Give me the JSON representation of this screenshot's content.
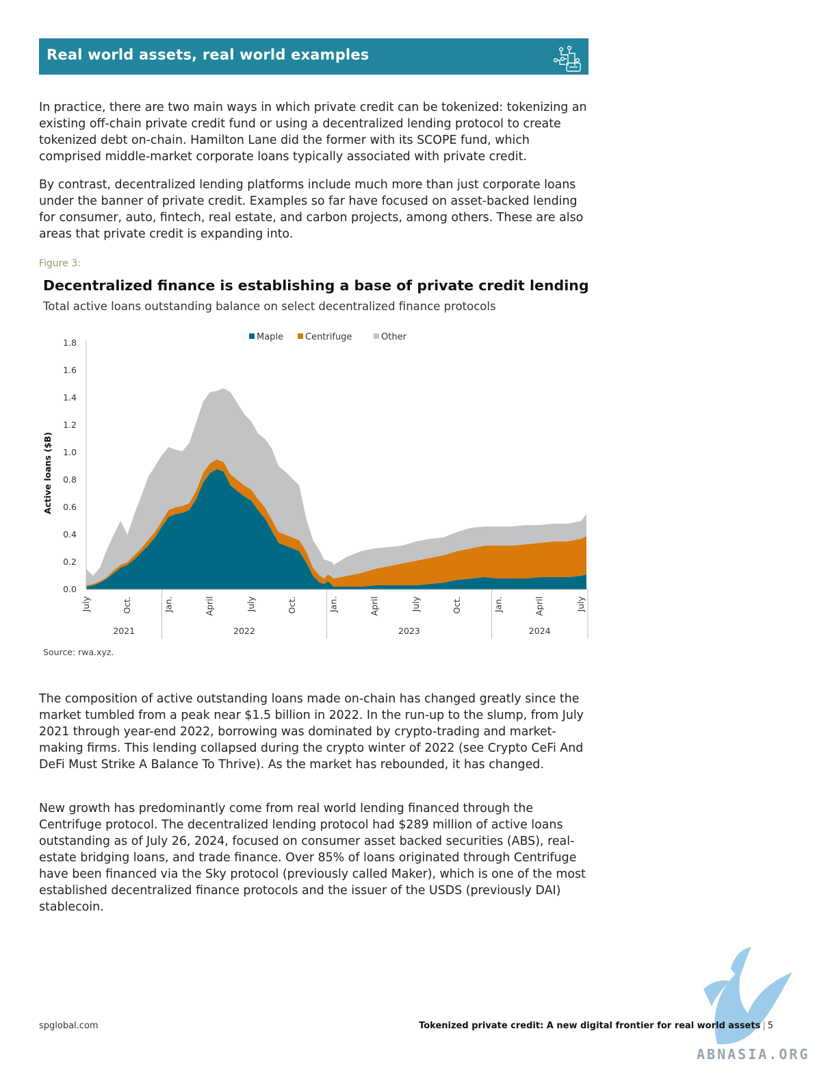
{
  "header": {
    "title": "Real world assets, real world examples",
    "icon": "circuit-icon",
    "color": "#21869d"
  },
  "paragraphs": {
    "p1": "In practice, there are two main ways in which private credit can be tokenized: tokenizing an existing off-chain private credit fund or using a decentralized lending protocol to create tokenized debt on-chain. Hamilton Lane did the former with its SCOPE fund, which comprised middle-market corporate loans typically associated with private credit.",
    "p2": "By contrast, decentralized lending platforms include much more than just corporate loans under the banner of private credit. Examples so far have focused on asset-backed lending for consumer, auto, fintech, real estate, and carbon projects, among others. These are also areas that private credit is expanding into.",
    "p3": "The composition of active outstanding loans made on-chain has changed greatly since the market tumbled from a peak near $1.5 billion in 2022. In the run-up to the slump, from July 2021 through year-end 2022, borrowing was dominated by crypto-trading and market-making firms. This lending collapsed during the crypto winter of 2022 (see Crypto CeFi And DeFi Must Strike A Balance To Thrive). As the market has rebounded, it has changed.",
    "p4": "New growth has predominantly come from real world lending financed through the Centrifuge protocol. The decentralized lending protocol had $289 million of active loans outstanding as of July 26, 2024, focused on consumer asset backed securities (ABS), real-estate bridging loans, and trade finance. Over 85% of loans originated through Centrifuge have been financed via the Sky protocol (previously called Maker), which is one of the most established decentralized finance protocols and the issuer of the USDS (previously DAI) stablecoin."
  },
  "figure": {
    "label": "Figure 3:",
    "title": "Decentralized finance is establishing a base of private credit lending",
    "subtitle": "Total active loans outstanding balance on select decentralized finance protocols",
    "source": "Source: rwa.xyz."
  },
  "chart_data": {
    "type": "area",
    "stacked": true,
    "ylabel": "Active loans ($B)",
    "ylim": [
      0,
      1.8
    ],
    "yticks": [
      "0.0",
      "0.2",
      "0.4",
      "0.6",
      "0.8",
      "1.0",
      "1.2",
      "1.4",
      "1.6",
      "1.8"
    ],
    "x_tick_labels": [
      "July",
      "Oct.",
      "Jan.",
      "April",
      "July",
      "Oct.",
      "Jan.",
      "April",
      "July",
      "Oct.",
      "Jan.",
      "April",
      "July"
    ],
    "x_tick_months": [
      0,
      3,
      6,
      9,
      12,
      15,
      18,
      21,
      24,
      27,
      30,
      33,
      36
    ],
    "years": [
      {
        "label": "2021",
        "start": 0,
        "end": 5.5
      },
      {
        "label": "2022",
        "start": 5.5,
        "end": 17.5
      },
      {
        "label": "2023",
        "start": 17.5,
        "end": 29.5
      },
      {
        "label": "2024",
        "start": 29.5,
        "end": 36.5
      }
    ],
    "legend": [
      "Maple",
      "Centrifuge",
      "Other"
    ],
    "legend_position": "top-center",
    "grid": false,
    "x": [
      0,
      0.5,
      1,
      1.5,
      2,
      2.5,
      3,
      3.5,
      4,
      4.5,
      5,
      5.5,
      6,
      6.5,
      7,
      7.5,
      8,
      8.5,
      9,
      9.5,
      10,
      10.5,
      11,
      11.5,
      12,
      12.5,
      13,
      13.5,
      14,
      14.5,
      15,
      15.5,
      16,
      16.5,
      17,
      17.3,
      17.6,
      17.9,
      18,
      18.5,
      19,
      19.5,
      20,
      21,
      22,
      23,
      24,
      25,
      26,
      27,
      28,
      29,
      30,
      31,
      32,
      33,
      34,
      35,
      36,
      36.4
    ],
    "series": [
      {
        "name": "Maple",
        "color": "#006a85",
        "values": [
          0.02,
          0.03,
          0.05,
          0.08,
          0.12,
          0.16,
          0.18,
          0.22,
          0.27,
          0.32,
          0.38,
          0.46,
          0.53,
          0.55,
          0.56,
          0.58,
          0.66,
          0.78,
          0.85,
          0.88,
          0.86,
          0.76,
          0.72,
          0.68,
          0.65,
          0.58,
          0.52,
          0.43,
          0.34,
          0.32,
          0.3,
          0.28,
          0.2,
          0.1,
          0.05,
          0.04,
          0.06,
          0.03,
          0.02,
          0.02,
          0.02,
          0.02,
          0.02,
          0.03,
          0.03,
          0.03,
          0.03,
          0.04,
          0.05,
          0.07,
          0.08,
          0.09,
          0.08,
          0.08,
          0.08,
          0.09,
          0.09,
          0.09,
          0.1,
          0.11
        ]
      },
      {
        "name": "Centrifuge",
        "color": "#d97a0b",
        "values": [
          0.01,
          0.01,
          0.01,
          0.01,
          0.02,
          0.02,
          0.02,
          0.03,
          0.03,
          0.04,
          0.04,
          0.04,
          0.05,
          0.05,
          0.05,
          0.05,
          0.06,
          0.07,
          0.07,
          0.07,
          0.07,
          0.08,
          0.08,
          0.08,
          0.08,
          0.08,
          0.08,
          0.08,
          0.08,
          0.08,
          0.08,
          0.08,
          0.08,
          0.06,
          0.05,
          0.04,
          0.05,
          0.06,
          0.06,
          0.07,
          0.08,
          0.09,
          0.1,
          0.12,
          0.14,
          0.16,
          0.18,
          0.19,
          0.2,
          0.21,
          0.22,
          0.23,
          0.24,
          0.24,
          0.25,
          0.25,
          0.26,
          0.26,
          0.27,
          0.28
        ]
      },
      {
        "name": "Other",
        "color": "#c2c3c4",
        "values": [
          0.12,
          0.06,
          0.1,
          0.2,
          0.26,
          0.32,
          0.2,
          0.3,
          0.38,
          0.46,
          0.48,
          0.48,
          0.46,
          0.42,
          0.4,
          0.44,
          0.5,
          0.52,
          0.52,
          0.5,
          0.54,
          0.6,
          0.56,
          0.52,
          0.5,
          0.48,
          0.5,
          0.52,
          0.48,
          0.46,
          0.43,
          0.4,
          0.24,
          0.2,
          0.18,
          0.14,
          0.1,
          0.11,
          0.1,
          0.12,
          0.14,
          0.15,
          0.16,
          0.15,
          0.14,
          0.13,
          0.14,
          0.14,
          0.13,
          0.14,
          0.15,
          0.14,
          0.14,
          0.14,
          0.14,
          0.13,
          0.13,
          0.13,
          0.13,
          0.16
        ]
      }
    ]
  },
  "footer": {
    "left": "spglobal.com",
    "title": "Tokenized private credit: A new digital frontier for real world assets",
    "page": "5"
  },
  "watermark": {
    "text": "ABNASIA.ORG"
  }
}
